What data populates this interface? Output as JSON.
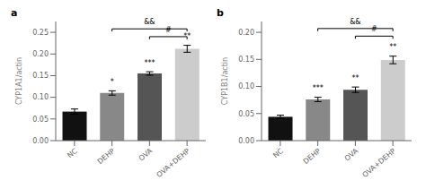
{
  "chart_data": [
    {
      "type": "bar",
      "panel_label": "a",
      "categories": [
        "NC",
        "DEHP",
        "OVA",
        "OVA+DEHP"
      ],
      "values": [
        0.067,
        0.11,
        0.155,
        0.212
      ],
      "errors": [
        0.006,
        0.005,
        0.004,
        0.008
      ],
      "colors": [
        "#111111",
        "#888888",
        "#555555",
        "#cccccc"
      ],
      "ylabel": "CYP1A1/actin",
      "ylim": [
        0,
        0.275
      ],
      "yticks": [
        {
          "value": 0,
          "label": "0.00"
        },
        {
          "value": 0.05,
          "label": "0.05"
        },
        {
          "value": 0.1,
          "label": "0.10"
        },
        {
          "value": 0.15,
          "label": "0.15"
        },
        {
          "value": 0.2,
          "label": "0.20"
        },
        {
          "value": 0.25,
          "label": "0.25"
        }
      ],
      "star_labels": [
        {
          "category": "DEHP",
          "text": "*"
        },
        {
          "category": "OVA",
          "text": "***"
        },
        {
          "category": "OVA+DEHP",
          "text": "**"
        }
      ],
      "brackets": [
        {
          "from": "DEHP",
          "to": "OVA+DEHP",
          "y": 0.258,
          "text": "&&"
        },
        {
          "from": "OVA",
          "to": "OVA+DEHP",
          "y": 0.24,
          "text": "#"
        }
      ]
    },
    {
      "type": "bar",
      "panel_label": "b",
      "categories": [
        "NC",
        "DEHP",
        "OVA",
        "OVA+DEHP"
      ],
      "values": [
        0.044,
        0.076,
        0.094,
        0.149
      ],
      "errors": [
        0.003,
        0.004,
        0.005,
        0.007
      ],
      "colors": [
        "#111111",
        "#888888",
        "#555555",
        "#cccccc"
      ],
      "ylabel": "CYP1B1/actin",
      "ylim": [
        0,
        0.22
      ],
      "yticks": [
        {
          "value": 0,
          "label": "0.00"
        },
        {
          "value": 0.05,
          "label": "0.05"
        },
        {
          "value": 0.1,
          "label": "0.10"
        },
        {
          "value": 0.15,
          "label": "0.15"
        },
        {
          "value": 0.2,
          "label": "0.20"
        }
      ],
      "star_labels": [
        {
          "category": "DEHP",
          "text": "***"
        },
        {
          "category": "OVA",
          "text": "**"
        },
        {
          "category": "OVA+DEHP",
          "text": "**"
        }
      ],
      "brackets": [
        {
          "from": "DEHP",
          "to": "OVA+DEHP",
          "y": 0.207,
          "text": "&&"
        },
        {
          "from": "OVA",
          "to": "OVA+DEHP",
          "y": 0.193,
          "text": "#"
        }
      ]
    }
  ]
}
